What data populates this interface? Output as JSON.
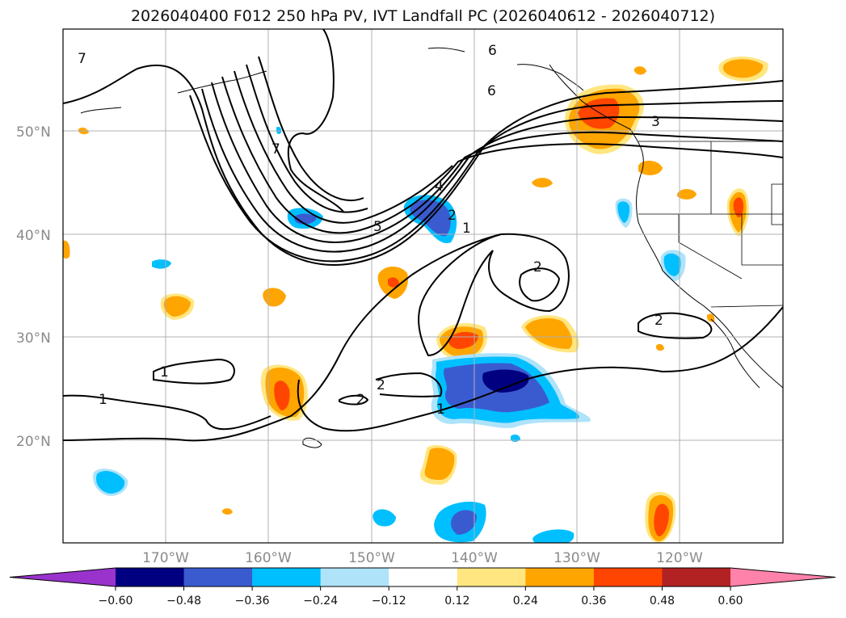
{
  "title": "2026040400 F012 250 hPa PV, IVT Landfall PC (2026040612 - 2026040712)",
  "lat_labels": [
    "50°N",
    "40°N",
    "30°N",
    "20°N"
  ],
  "lon_labels": [
    "170°W",
    "160°W",
    "150°W",
    "140°W",
    "130°W",
    "120°W"
  ],
  "contour_labels": [
    "1",
    "2",
    "3",
    "4",
    "5",
    "6",
    "7"
  ],
  "colorbar": {
    "tick_labels": [
      "−0.60",
      "−0.48",
      "−0.36",
      "−0.24",
      "−0.12",
      "0.12",
      "0.24",
      "0.36",
      "0.48",
      "0.60"
    ],
    "colors": [
      "#9933cc",
      "#000080",
      "#3a5bd0",
      "#00bfff",
      "#aee3fa",
      "#ffffff",
      "#ffe680",
      "#ffa500",
      "#ff4500",
      "#b22222",
      "#ff82aa"
    ]
  },
  "colors": {
    "grid": "#b0b0b0",
    "contour": "#000000",
    "pos_light": "#ffe680",
    "pos_mid": "#ffa500",
    "pos_high": "#ff4500",
    "neg_light": "#aee3fa",
    "neg_mid": "#00bfff",
    "neg_high": "#3a5bd0",
    "neg_max": "#000080"
  }
}
